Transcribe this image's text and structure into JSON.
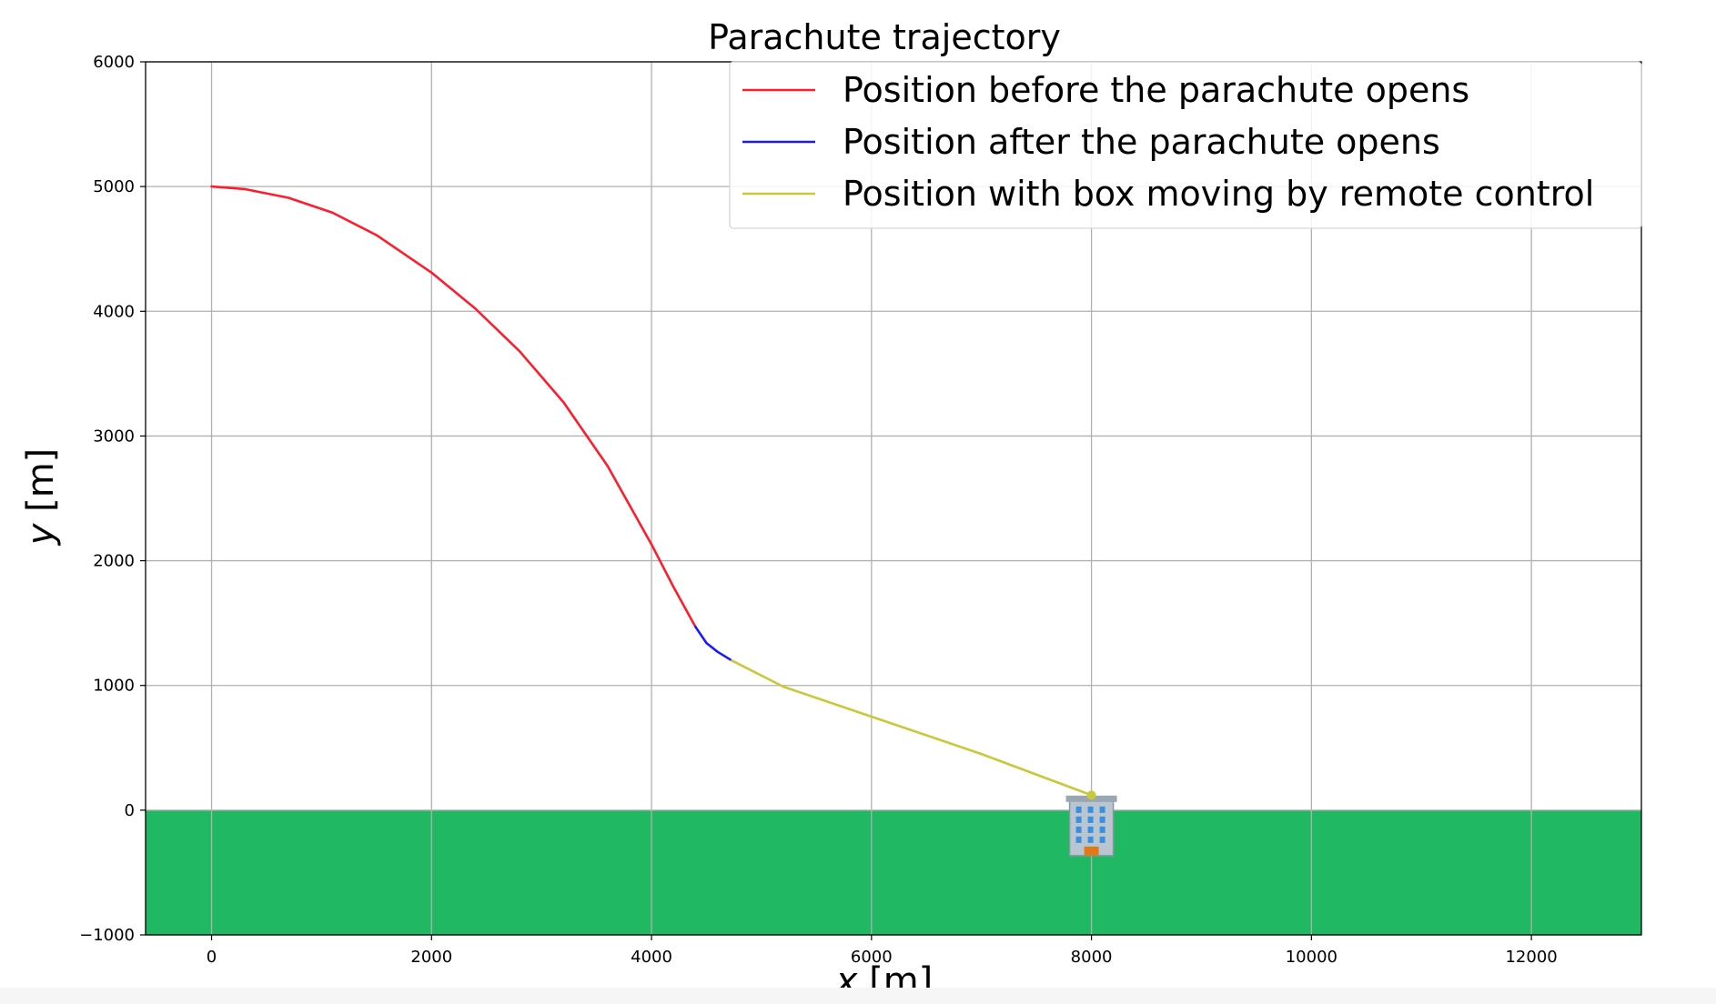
{
  "chart_data": {
    "type": "line",
    "title": "Parachute trajectory",
    "xlabel": "x [m]",
    "ylabel": "y [m]",
    "xlim": [
      -600,
      13000
    ],
    "ylim": [
      -1000,
      6000
    ],
    "x_ticks": [
      0,
      2000,
      4000,
      6000,
      8000,
      10000,
      12000
    ],
    "y_ticks": [
      -1000,
      0,
      1000,
      2000,
      3000,
      4000,
      5000,
      6000
    ],
    "x_tick_labels": [
      "0",
      "2000",
      "4000",
      "6000",
      "8000",
      "10000",
      "12000"
    ],
    "y_tick_labels": [
      "−1000",
      "0",
      "1000",
      "2000",
      "3000",
      "4000",
      "5000",
      "6000"
    ],
    "grid": true,
    "legend_position": "top-right",
    "ground": {
      "y_from": -1000,
      "y_to": 0,
      "color": "#20b862"
    },
    "building": {
      "x": 8000,
      "y": 0,
      "icon": "office-building-icon"
    },
    "series": [
      {
        "name": "Position before the parachute opens",
        "color": "#ff1c2b",
        "x": [
          0,
          300,
          700,
          1100,
          1500,
          2000,
          2400,
          2800,
          3200,
          3600,
          4000,
          4200,
          4400
        ],
        "y": [
          5000,
          4980,
          4910,
          4790,
          4610,
          4310,
          4020,
          3680,
          3270,
          2760,
          2130,
          1790,
          1470
        ]
      },
      {
        "name": "Position after the parachute opens",
        "color": "#1a1aff",
        "x": [
          4400,
          4500,
          4600,
          4730
        ],
        "y": [
          1470,
          1340,
          1270,
          1200
        ]
      },
      {
        "name": "Position with box moving by remote control",
        "color": "#c8c83a",
        "x": [
          4730,
          5200,
          6000,
          7000,
          8000
        ],
        "y": [
          1200,
          990,
          750,
          450,
          120
        ]
      }
    ]
  }
}
